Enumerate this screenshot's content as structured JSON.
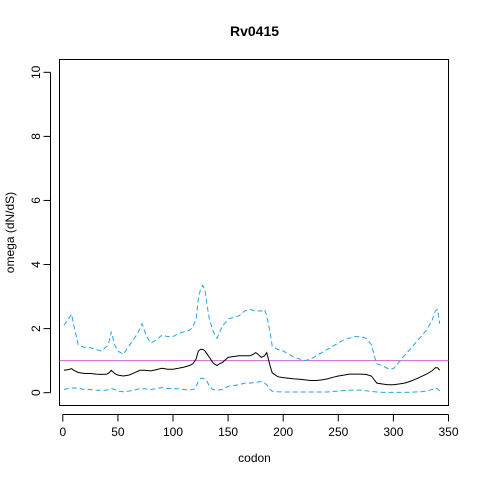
{
  "chart_data": {
    "type": "line",
    "title": "Rv0415",
    "xlabel": "codon",
    "ylabel": "omega (dN/dS)",
    "xlim": [
      -3,
      350
    ],
    "ylim": [
      -0.4,
      10.4
    ],
    "x_ticks": [
      0,
      50,
      100,
      150,
      200,
      250,
      300,
      350
    ],
    "y_ticks": [
      0,
      2,
      4,
      6,
      8,
      10
    ],
    "grid": false,
    "legend": "none",
    "reference_line": {
      "y": 1,
      "color": "#CC66CC"
    },
    "series": [
      {
        "role": "upper",
        "color": "#29A3E0",
        "dash": true,
        "x": [
          1,
          5,
          8,
          10,
          14,
          20,
          25,
          30,
          35,
          40,
          42,
          44,
          47,
          50,
          55,
          60,
          65,
          68,
          70,
          72,
          74,
          76,
          80,
          85,
          90,
          95,
          100,
          105,
          110,
          115,
          118,
          121,
          123,
          125,
          127,
          129,
          131,
          133,
          136,
          138,
          140,
          142,
          145,
          148,
          150,
          155,
          160,
          165,
          170,
          175,
          180,
          183,
          185,
          188,
          190,
          195,
          200,
          205,
          210,
          215,
          220,
          225,
          230,
          235,
          240,
          245,
          250,
          255,
          260,
          265,
          270,
          275,
          280,
          283,
          285,
          290,
          295,
          300,
          305,
          310,
          315,
          320,
          325,
          330,
          335,
          338,
          340,
          342
        ],
        "y": [
          2.1,
          2.3,
          2.45,
          2.1,
          1.5,
          1.4,
          1.4,
          1.35,
          1.3,
          1.45,
          1.6,
          1.9,
          1.5,
          1.3,
          1.2,
          1.45,
          1.7,
          1.85,
          2.0,
          2.15,
          1.95,
          1.75,
          1.55,
          1.65,
          1.8,
          1.75,
          1.75,
          1.85,
          1.9,
          1.95,
          2.05,
          2.3,
          2.9,
          3.25,
          3.35,
          3.2,
          2.7,
          2.3,
          1.95,
          1.8,
          1.7,
          1.85,
          2.1,
          2.2,
          2.3,
          2.35,
          2.4,
          2.55,
          2.6,
          2.55,
          2.55,
          2.6,
          2.4,
          1.9,
          1.45,
          1.35,
          1.3,
          1.2,
          1.1,
          1.05,
          1.0,
          1.05,
          1.15,
          1.25,
          1.35,
          1.45,
          1.55,
          1.65,
          1.7,
          1.75,
          1.75,
          1.7,
          1.5,
          1.1,
          0.9,
          0.85,
          0.75,
          0.75,
          0.95,
          1.15,
          1.35,
          1.55,
          1.75,
          1.95,
          2.25,
          2.55,
          2.6,
          2.15
        ]
      },
      {
        "role": "estimate",
        "color": "#000000",
        "dash": false,
        "x": [
          1,
          5,
          8,
          10,
          14,
          20,
          25,
          30,
          35,
          40,
          42,
          44,
          47,
          50,
          55,
          60,
          65,
          70,
          74,
          80,
          85,
          90,
          95,
          100,
          105,
          110,
          115,
          118,
          121,
          123,
          125,
          127,
          129,
          131,
          133,
          136,
          138,
          140,
          142,
          145,
          150,
          155,
          160,
          165,
          170,
          173,
          175,
          177,
          180,
          183,
          185,
          188,
          190,
          195,
          200,
          205,
          210,
          215,
          220,
          225,
          230,
          235,
          240,
          245,
          250,
          255,
          260,
          265,
          270,
          275,
          280,
          283,
          285,
          290,
          295,
          300,
          305,
          310,
          315,
          320,
          325,
          330,
          335,
          338,
          340,
          342
        ],
        "y": [
          0.7,
          0.72,
          0.75,
          0.7,
          0.63,
          0.6,
          0.6,
          0.58,
          0.57,
          0.58,
          0.62,
          0.7,
          0.6,
          0.55,
          0.52,
          0.55,
          0.62,
          0.7,
          0.7,
          0.68,
          0.72,
          0.76,
          0.73,
          0.73,
          0.76,
          0.8,
          0.85,
          0.9,
          1.05,
          1.3,
          1.35,
          1.35,
          1.3,
          1.2,
          1.1,
          0.95,
          0.88,
          0.85,
          0.9,
          0.95,
          1.1,
          1.13,
          1.15,
          1.15,
          1.15,
          1.2,
          1.25,
          1.2,
          1.1,
          1.15,
          1.25,
          0.85,
          0.62,
          0.5,
          0.47,
          0.45,
          0.43,
          0.42,
          0.4,
          0.38,
          0.38,
          0.4,
          0.43,
          0.48,
          0.52,
          0.55,
          0.58,
          0.58,
          0.58,
          0.57,
          0.52,
          0.38,
          0.3,
          0.27,
          0.25,
          0.25,
          0.27,
          0.3,
          0.35,
          0.42,
          0.5,
          0.58,
          0.68,
          0.78,
          0.78,
          0.7
        ]
      },
      {
        "role": "lower",
        "color": "#29A3E0",
        "dash": true,
        "x": [
          1,
          5,
          10,
          15,
          20,
          25,
          30,
          35,
          40,
          42,
          44,
          47,
          50,
          55,
          60,
          65,
          70,
          74,
          80,
          85,
          90,
          95,
          100,
          105,
          110,
          115,
          120,
          123,
          125,
          127,
          129,
          131,
          133,
          136,
          140,
          145,
          150,
          155,
          160,
          165,
          170,
          175,
          180,
          183,
          185,
          188,
          190,
          195,
          200,
          210,
          220,
          230,
          240,
          250,
          260,
          270,
          280,
          285,
          290,
          300,
          310,
          320,
          325,
          330,
          335,
          338,
          340,
          342
        ],
        "y": [
          0.1,
          0.13,
          0.15,
          0.13,
          0.1,
          0.1,
          0.08,
          0.07,
          0.08,
          0.1,
          0.13,
          0.1,
          0.05,
          0.03,
          0.05,
          0.08,
          0.12,
          0.12,
          0.1,
          0.13,
          0.16,
          0.13,
          0.13,
          0.12,
          0.1,
          0.08,
          0.12,
          0.35,
          0.45,
          0.45,
          0.42,
          0.35,
          0.2,
          0.1,
          0.08,
          0.1,
          0.2,
          0.22,
          0.25,
          0.3,
          0.3,
          0.32,
          0.35,
          0.3,
          0.25,
          0.1,
          0.05,
          0.03,
          0.02,
          0.02,
          0.02,
          0.02,
          0.02,
          0.05,
          0.08,
          0.08,
          0.04,
          0.02,
          0.01,
          0.01,
          0.01,
          0.02,
          0.03,
          0.05,
          0.1,
          0.15,
          0.12,
          0.05
        ]
      }
    ]
  }
}
